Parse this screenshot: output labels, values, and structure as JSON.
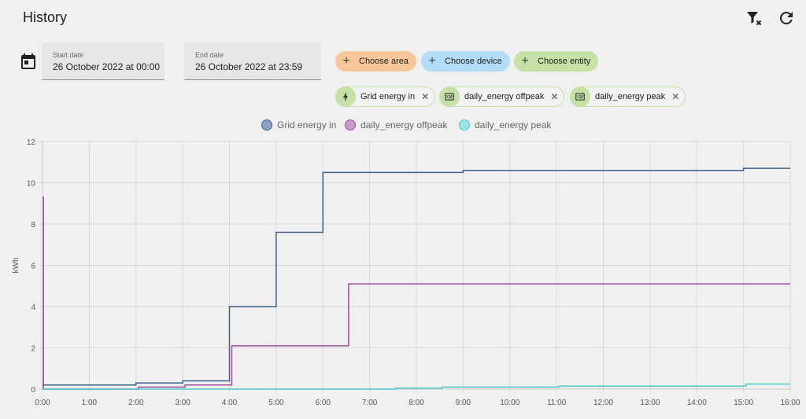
{
  "header": {
    "title": "History"
  },
  "toolbar": {
    "clear_icon": "filter-remove-icon",
    "refresh_icon": "refresh-icon"
  },
  "date_range": {
    "start": {
      "label": "Start date",
      "value": "26 October 2022 at 00:00"
    },
    "end": {
      "label": "End date",
      "value": "26 October 2022 at 23:59"
    }
  },
  "target_picker": {
    "area": {
      "label": "Choose area",
      "color": "#f7c79a"
    },
    "device": {
      "label": "Choose device",
      "color": "#b3dcf6"
    },
    "entity": {
      "label": "Choose entity",
      "color": "#c5e1a5"
    }
  },
  "entities": [
    {
      "label": "Grid energy in",
      "icon": "lightning-bolt-icon"
    },
    {
      "label": "daily_energy offpeak",
      "icon": "meter-icon"
    },
    {
      "label": "daily_energy peak",
      "icon": "meter-icon"
    }
  ],
  "chart_data": {
    "type": "line",
    "step": true,
    "title": "",
    "xlabel": "",
    "ylabel": "kWh",
    "xlim": [
      0,
      16
    ],
    "ylim": [
      0,
      12
    ],
    "y_ticks": [
      0,
      2,
      4,
      6,
      8,
      10,
      12
    ],
    "x_ticks": [
      "0:00",
      "1:00",
      "2:00",
      "3:00",
      "4:00",
      "5:00",
      "6:00",
      "7:00",
      "8:00",
      "9:00",
      "10:00",
      "11:00",
      "12:00",
      "13:00",
      "14:00",
      "15:00",
      "16:00"
    ],
    "grid": true,
    "legend_position": "top",
    "series": [
      {
        "name": "Grid energy in",
        "color": "#3e5f8a",
        "points": [
          [
            0,
            0.2
          ],
          [
            2,
            0.3
          ],
          [
            3,
            0.4
          ],
          [
            4,
            4.0
          ],
          [
            5,
            7.6
          ],
          [
            6,
            10.5
          ],
          [
            9,
            10.6
          ],
          [
            15,
            10.7
          ],
          [
            16,
            10.7
          ]
        ]
      },
      {
        "name": "daily_energy offpeak",
        "color": "#9b4f9b",
        "points": [
          [
            0,
            9.3
          ],
          [
            0.02,
            0.0
          ],
          [
            2.05,
            0.1
          ],
          [
            3.05,
            0.2
          ],
          [
            4.05,
            2.1
          ],
          [
            6.55,
            5.1
          ],
          [
            16,
            5.1
          ]
        ]
      },
      {
        "name": "daily_energy peak",
        "color": "#4dc8c8",
        "points": [
          [
            0,
            0.0
          ],
          [
            7.55,
            0.05
          ],
          [
            8.55,
            0.1
          ],
          [
            11.05,
            0.15
          ],
          [
            15.05,
            0.25
          ],
          [
            16,
            0.25
          ]
        ]
      }
    ]
  }
}
